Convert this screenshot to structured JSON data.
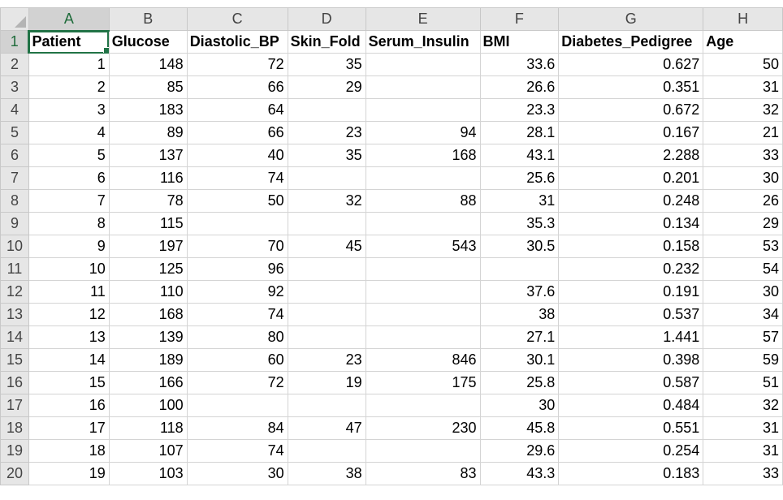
{
  "colors": {
    "header_bg": "#e6e6e6",
    "active_header_bg": "#d2d2d2",
    "selection": "#217346",
    "gridline": "#d4d4d4"
  },
  "columns": [
    "A",
    "B",
    "C",
    "D",
    "E",
    "F",
    "G",
    "H"
  ],
  "row_numbers": [
    "1",
    "2",
    "3",
    "4",
    "5",
    "6",
    "7",
    "8",
    "9",
    "10",
    "11",
    "12",
    "13",
    "14",
    "15",
    "16",
    "17",
    "18",
    "19",
    "20"
  ],
  "selected_cell": "A1",
  "header_row": [
    "Patient",
    "Glucose",
    "Diastolic_BP",
    "Skin_Fold",
    "Serum_Insulin",
    "BMI",
    "Diabetes_Pedigree",
    "Age"
  ],
  "rows": [
    [
      "1",
      "148",
      "72",
      "35",
      "",
      "33.6",
      "0.627",
      "50"
    ],
    [
      "2",
      "85",
      "66",
      "29",
      "",
      "26.6",
      "0.351",
      "31"
    ],
    [
      "3",
      "183",
      "64",
      "",
      "",
      "23.3",
      "0.672",
      "32"
    ],
    [
      "4",
      "89",
      "66",
      "23",
      "94",
      "28.1",
      "0.167",
      "21"
    ],
    [
      "5",
      "137",
      "40",
      "35",
      "168",
      "43.1",
      "2.288",
      "33"
    ],
    [
      "6",
      "116",
      "74",
      "",
      "",
      "25.6",
      "0.201",
      "30"
    ],
    [
      "7",
      "78",
      "50",
      "32",
      "88",
      "31",
      "0.248",
      "26"
    ],
    [
      "8",
      "115",
      "",
      "",
      "",
      "35.3",
      "0.134",
      "29"
    ],
    [
      "9",
      "197",
      "70",
      "45",
      "543",
      "30.5",
      "0.158",
      "53"
    ],
    [
      "10",
      "125",
      "96",
      "",
      "",
      "",
      "0.232",
      "54"
    ],
    [
      "11",
      "110",
      "92",
      "",
      "",
      "37.6",
      "0.191",
      "30"
    ],
    [
      "12",
      "168",
      "74",
      "",
      "",
      "38",
      "0.537",
      "34"
    ],
    [
      "13",
      "139",
      "80",
      "",
      "",
      "27.1",
      "1.441",
      "57"
    ],
    [
      "14",
      "189",
      "60",
      "23",
      "846",
      "30.1",
      "0.398",
      "59"
    ],
    [
      "15",
      "166",
      "72",
      "19",
      "175",
      "25.8",
      "0.587",
      "51"
    ],
    [
      "16",
      "100",
      "",
      "",
      "",
      "30",
      "0.484",
      "32"
    ],
    [
      "17",
      "118",
      "84",
      "47",
      "230",
      "45.8",
      "0.551",
      "31"
    ],
    [
      "18",
      "107",
      "74",
      "",
      "",
      "29.6",
      "0.254",
      "31"
    ],
    [
      "19",
      "103",
      "30",
      "38",
      "83",
      "43.3",
      "0.183",
      "33"
    ]
  ]
}
